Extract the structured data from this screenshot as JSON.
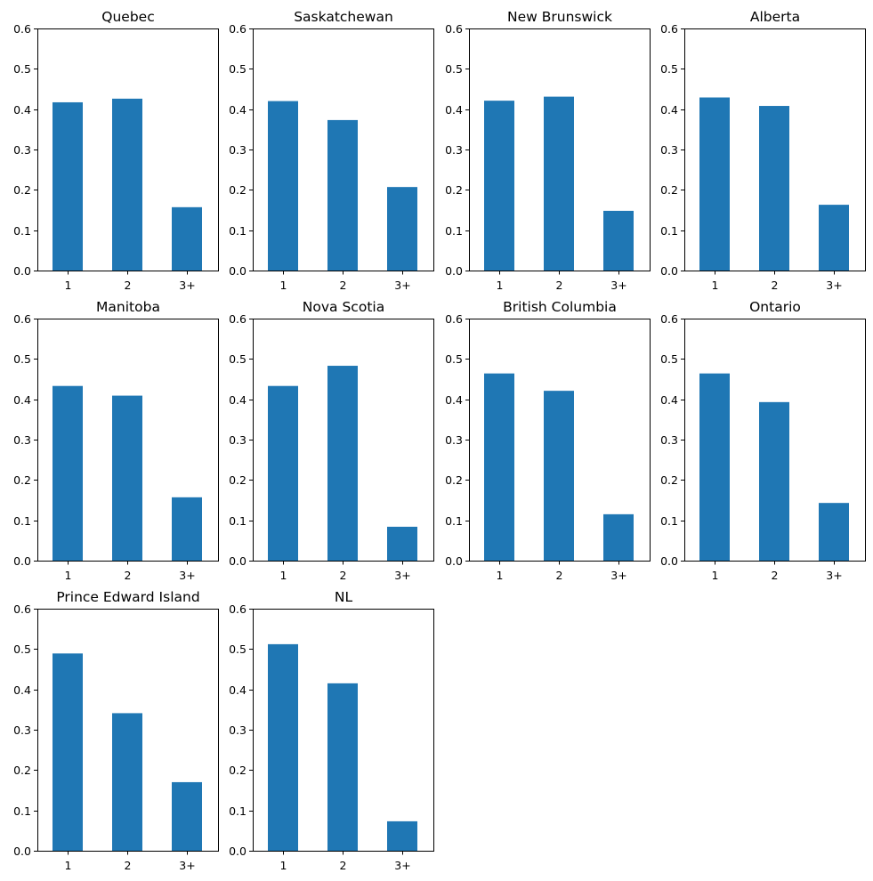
{
  "chart_data": [
    {
      "type": "bar",
      "title": "Quebec",
      "categories": [
        "1",
        "2",
        "3+"
      ],
      "values": [
        0.417,
        0.426,
        0.157
      ],
      "ylim": [
        0,
        0.6
      ],
      "yticks": [
        "0.0",
        "0.1",
        "0.2",
        "0.3",
        "0.4",
        "0.5",
        "0.6"
      ],
      "xlabel": "",
      "ylabel": "",
      "color": "#1f77b4"
    },
    {
      "type": "bar",
      "title": "Saskatchewan",
      "categories": [
        "1",
        "2",
        "3+"
      ],
      "values": [
        0.42,
        0.373,
        0.207
      ],
      "ylim": [
        0,
        0.6
      ],
      "yticks": [
        "0.0",
        "0.1",
        "0.2",
        "0.3",
        "0.4",
        "0.5",
        "0.6"
      ],
      "xlabel": "",
      "ylabel": "",
      "color": "#1f77b4"
    },
    {
      "type": "bar",
      "title": "New Brunswick",
      "categories": [
        "1",
        "2",
        "3+"
      ],
      "values": [
        0.421,
        0.431,
        0.148
      ],
      "ylim": [
        0,
        0.6
      ],
      "yticks": [
        "0.0",
        "0.1",
        "0.2",
        "0.3",
        "0.4",
        "0.5",
        "0.6"
      ],
      "xlabel": "",
      "ylabel": "",
      "color": "#1f77b4"
    },
    {
      "type": "bar",
      "title": "Alberta",
      "categories": [
        "1",
        "2",
        "3+"
      ],
      "values": [
        0.429,
        0.408,
        0.163
      ],
      "ylim": [
        0,
        0.6
      ],
      "yticks": [
        "0.0",
        "0.1",
        "0.2",
        "0.3",
        "0.4",
        "0.5",
        "0.6"
      ],
      "xlabel": "",
      "ylabel": "",
      "color": "#1f77b4"
    },
    {
      "type": "bar",
      "title": "Manitoba",
      "categories": [
        "1",
        "2",
        "3+"
      ],
      "values": [
        0.433,
        0.409,
        0.157
      ],
      "ylim": [
        0,
        0.6
      ],
      "yticks": [
        "0.0",
        "0.1",
        "0.2",
        "0.3",
        "0.4",
        "0.5",
        "0.6"
      ],
      "xlabel": "",
      "ylabel": "",
      "color": "#1f77b4"
    },
    {
      "type": "bar",
      "title": "Nova Scotia",
      "categories": [
        "1",
        "2",
        "3+"
      ],
      "values": [
        0.433,
        0.483,
        0.084
      ],
      "ylim": [
        0,
        0.6
      ],
      "yticks": [
        "0.0",
        "0.1",
        "0.2",
        "0.3",
        "0.4",
        "0.5",
        "0.6"
      ],
      "xlabel": "",
      "ylabel": "",
      "color": "#1f77b4"
    },
    {
      "type": "bar",
      "title": "British Columbia",
      "categories": [
        "1",
        "2",
        "3+"
      ],
      "values": [
        0.464,
        0.421,
        0.115
      ],
      "ylim": [
        0,
        0.6
      ],
      "yticks": [
        "0.0",
        "0.1",
        "0.2",
        "0.3",
        "0.4",
        "0.5",
        "0.6"
      ],
      "xlabel": "",
      "ylabel": "",
      "color": "#1f77b4"
    },
    {
      "type": "bar",
      "title": "Ontario",
      "categories": [
        "1",
        "2",
        "3+"
      ],
      "values": [
        0.464,
        0.393,
        0.143
      ],
      "ylim": [
        0,
        0.6
      ],
      "yticks": [
        "0.0",
        "0.1",
        "0.2",
        "0.3",
        "0.4",
        "0.5",
        "0.6"
      ],
      "xlabel": "",
      "ylabel": "",
      "color": "#1f77b4"
    },
    {
      "type": "bar",
      "title": "Prince Edward Island",
      "categories": [
        "1",
        "2",
        "3+"
      ],
      "values": [
        0.489,
        0.341,
        0.17
      ],
      "ylim": [
        0,
        0.6
      ],
      "yticks": [
        "0.0",
        "0.1",
        "0.2",
        "0.3",
        "0.4",
        "0.5",
        "0.6"
      ],
      "xlabel": "",
      "ylabel": "",
      "color": "#1f77b4"
    },
    {
      "type": "bar",
      "title": "NL",
      "categories": [
        "1",
        "2",
        "3+"
      ],
      "values": [
        0.512,
        0.415,
        0.073
      ],
      "ylim": [
        0,
        0.6
      ],
      "yticks": [
        "0.0",
        "0.1",
        "0.2",
        "0.3",
        "0.4",
        "0.5",
        "0.6"
      ],
      "xlabel": "",
      "ylabel": "",
      "color": "#1f77b4"
    }
  ]
}
